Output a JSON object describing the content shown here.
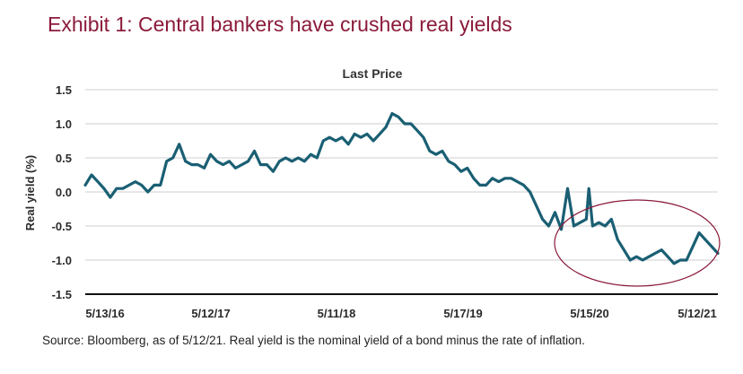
{
  "header": {
    "title": "Exhibit 1: Central bankers have crushed real yields"
  },
  "footer": {
    "source": "Source: Bloomberg, as of 5/12/21. Real yield is the nominal yield of a bond minus the rate of inflation."
  },
  "chart_data": {
    "type": "line",
    "title": "Last Price",
    "xlabel": "",
    "ylabel": "Real yield (%)",
    "ylim": [
      -1.5,
      1.5
    ],
    "yticks": [
      "1.5",
      "1.0",
      "0.5",
      "0.0",
      "-0.5",
      "-1.0",
      "-1.5"
    ],
    "xticks": [
      "5/13/16",
      "5/12/17",
      "5/11/18",
      "5/17/19",
      "5/15/20",
      "5/12/21"
    ],
    "grid": "horizontal",
    "line_color": "#1a5f73",
    "annotation_color": "#8b1a3a",
    "series": [
      {
        "x": [
          0,
          0.05,
          0.1,
          0.15,
          0.2,
          0.25,
          0.3,
          0.35,
          0.4,
          0.45,
          0.5,
          0.55,
          0.6,
          0.65,
          0.7,
          0.75,
          0.8,
          0.85,
          0.9,
          0.95,
          1.0,
          1.05,
          1.1,
          1.15,
          1.2,
          1.25,
          1.3,
          1.35,
          1.4,
          1.45,
          1.5,
          1.55,
          1.6,
          1.65,
          1.7,
          1.75,
          1.8,
          1.85,
          1.9,
          1.95,
          2.0,
          2.05,
          2.1,
          2.15,
          2.2,
          2.25,
          2.3,
          2.35,
          2.4,
          2.45,
          2.5,
          2.55,
          2.6,
          2.65,
          2.7,
          2.75,
          2.8,
          2.85,
          2.9,
          2.95,
          3.0,
          3.05,
          3.1,
          3.15,
          3.2,
          3.25,
          3.3,
          3.35,
          3.4,
          3.45,
          3.5,
          3.55,
          3.6,
          3.65,
          3.7,
          3.75,
          3.8,
          3.85,
          3.9,
          3.95,
          4.0,
          4.02,
          4.05,
          4.1,
          4.15,
          4.2,
          4.25,
          4.3,
          4.35,
          4.4,
          4.45,
          4.5,
          4.55,
          4.6,
          4.65,
          4.7,
          4.75,
          4.8,
          4.85,
          4.9,
          4.95,
          5.0,
          5.05
        ],
        "y": [
          0.1,
          0.25,
          0.15,
          0.05,
          -0.08,
          0.05,
          0.05,
          0.1,
          0.15,
          0.1,
          0.0,
          0.1,
          0.1,
          0.45,
          0.5,
          0.7,
          0.45,
          0.4,
          0.4,
          0.35,
          0.55,
          0.45,
          0.4,
          0.45,
          0.35,
          0.4,
          0.45,
          0.6,
          0.4,
          0.4,
          0.3,
          0.45,
          0.5,
          0.45,
          0.5,
          0.45,
          0.55,
          0.5,
          0.75,
          0.8,
          0.75,
          0.8,
          0.7,
          0.85,
          0.8,
          0.85,
          0.75,
          0.85,
          0.95,
          1.15,
          1.1,
          1.0,
          1.0,
          0.9,
          0.8,
          0.6,
          0.55,
          0.6,
          0.45,
          0.4,
          0.3,
          0.35,
          0.2,
          0.1,
          0.1,
          0.2,
          0.15,
          0.2,
          0.2,
          0.15,
          0.1,
          0.0,
          -0.2,
          -0.4,
          -0.5,
          -0.3,
          -0.55,
          0.05,
          -0.5,
          -0.45,
          -0.4,
          0.05,
          -0.5,
          -0.45,
          -0.5,
          -0.4,
          -0.7,
          -0.85,
          -1.0,
          -0.95,
          -1.0,
          -0.95,
          -0.9,
          -0.85,
          -0.95,
          -1.05,
          -1.0,
          -1.0,
          -0.8,
          -0.6,
          -0.7,
          -0.8,
          -0.9
        ]
      }
    ],
    "annotations": [
      {
        "type": "ellipse",
        "label": ""
      }
    ]
  }
}
